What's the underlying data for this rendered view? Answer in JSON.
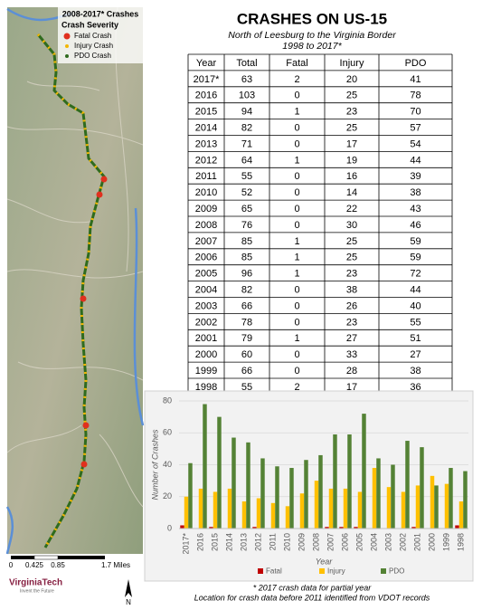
{
  "map": {
    "legend_title": "2008-2017* Crashes",
    "legend_subtitle": "Crash Severity",
    "legend_items": [
      "Fatal Crash",
      "Injury Crash",
      "PDO Crash"
    ],
    "scale_labels": [
      "0",
      "0.425",
      "0.85",
      "1.7 Miles"
    ],
    "logo": "VirginiaTech",
    "logo_tagline": "Invent the Future",
    "north": "N"
  },
  "header": {
    "title": "CRASHES ON US-15",
    "subtitle": "North of Leesburg to the Virginia Border",
    "period": "1998 to 2017*"
  },
  "table": {
    "header": [
      "Year",
      "Total",
      "Fatal",
      "Injury",
      "PDO"
    ],
    "rows": [
      [
        "2017*",
        63,
        2,
        20,
        41
      ],
      [
        "2016",
        103,
        0,
        25,
        78
      ],
      [
        "2015",
        94,
        1,
        23,
        70
      ],
      [
        "2014",
        82,
        0,
        25,
        57
      ],
      [
        "2013",
        71,
        0,
        17,
        54
      ],
      [
        "2012",
        64,
        1,
        19,
        44
      ],
      [
        "2011",
        55,
        0,
        16,
        39
      ],
      [
        "2010",
        52,
        0,
        14,
        38
      ],
      [
        "2009",
        65,
        0,
        22,
        43
      ],
      [
        "2008",
        76,
        0,
        30,
        46
      ],
      [
        "2007",
        85,
        1,
        25,
        59
      ],
      [
        "2006",
        85,
        1,
        25,
        59
      ],
      [
        "2005",
        96,
        1,
        23,
        72
      ],
      [
        "2004",
        82,
        0,
        38,
        44
      ],
      [
        "2003",
        66,
        0,
        26,
        40
      ],
      [
        "2002",
        78,
        0,
        23,
        55
      ],
      [
        "2001",
        79,
        1,
        27,
        51
      ],
      [
        "2000",
        60,
        0,
        33,
        27
      ],
      [
        "1999",
        66,
        0,
        28,
        38
      ],
      [
        "1998",
        55,
        2,
        17,
        36
      ]
    ]
  },
  "chart_data": {
    "type": "bar",
    "x_label": "Year",
    "y_label": "Number of Crashes",
    "categories": [
      "2017*",
      "2016",
      "2015",
      "2014",
      "2013",
      "2012",
      "2011",
      "2010",
      "2009",
      "2008",
      "2007",
      "2006",
      "2005",
      "2004",
      "2003",
      "2002",
      "2001",
      "2000",
      "1999",
      "1998"
    ],
    "series": [
      {
        "name": "Fatal",
        "color": "#c00000",
        "values": [
          2,
          0,
          1,
          0,
          0,
          1,
          0,
          0,
          0,
          0,
          1,
          1,
          1,
          0,
          0,
          0,
          1,
          0,
          0,
          2
        ]
      },
      {
        "name": "Injury",
        "color": "#ffc000",
        "values": [
          20,
          25,
          23,
          25,
          17,
          19,
          16,
          14,
          22,
          30,
          25,
          25,
          23,
          38,
          26,
          23,
          27,
          33,
          28,
          17
        ]
      },
      {
        "name": "PDO",
        "color": "#548235",
        "values": [
          41,
          78,
          70,
          57,
          54,
          44,
          39,
          38,
          43,
          46,
          59,
          59,
          72,
          44,
          40,
          55,
          51,
          27,
          38,
          36
        ]
      }
    ],
    "ylim": [
      0,
      80
    ],
    "yticks": [
      0,
      20,
      40,
      60,
      80
    ],
    "grid": true
  },
  "footnotes": [
    "* 2017 crash data for partial year",
    "Location for crash data before 2011 identified from VDOT records"
  ]
}
